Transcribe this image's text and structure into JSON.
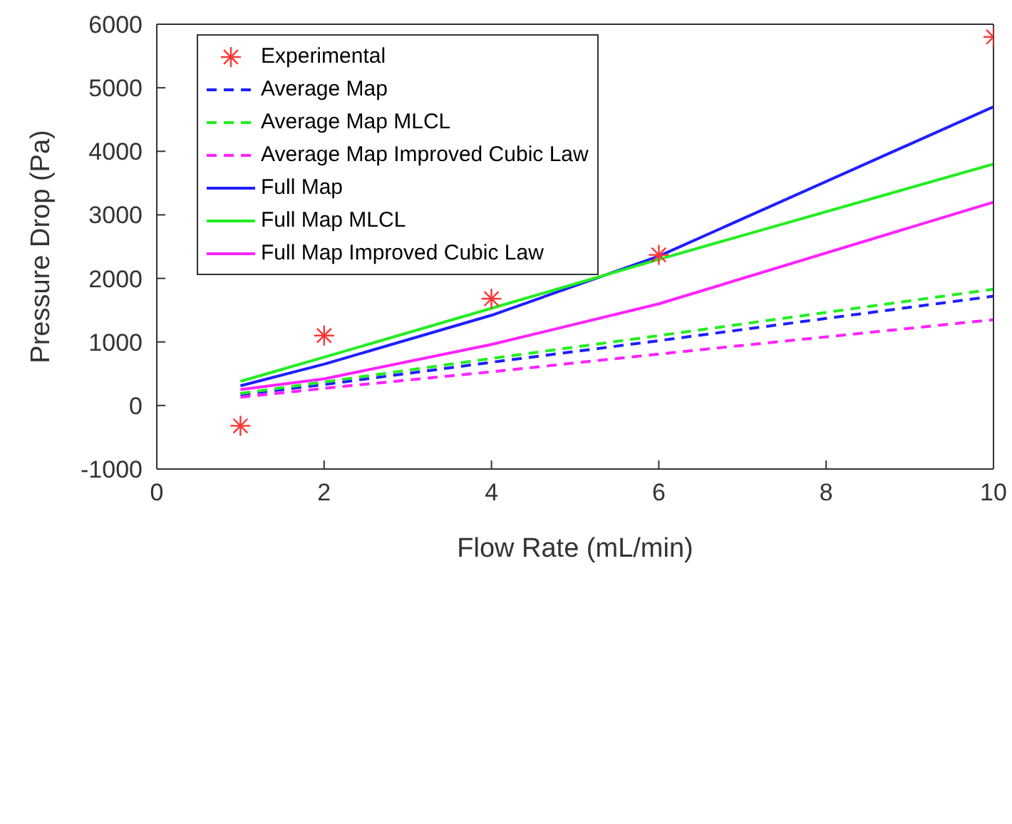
{
  "chart_data": {
    "type": "line",
    "xlabel": "Flow Rate (mL/min)",
    "ylabel": "Pressure Drop (Pa)",
    "x": [
      1,
      2,
      4,
      6,
      10
    ],
    "xlim": [
      0,
      10
    ],
    "xticks": [
      0,
      2,
      4,
      6,
      8,
      10
    ],
    "ylim": [
      -1000,
      6000
    ],
    "yticks": [
      -1000,
      0,
      1000,
      2000,
      3000,
      4000,
      5000,
      6000
    ],
    "grid": false,
    "legend": "top left",
    "series": [
      {
        "name": "Experimental",
        "type": "scatter",
        "marker": "cross",
        "color": "#ff3333",
        "values": [
          -320,
          1100,
          1680,
          2370,
          5800
        ]
      },
      {
        "name": "Average Map",
        "line_style": "dashed",
        "marker": "none",
        "color": "#1f1fff",
        "values": [
          170,
          330,
          680,
          1020,
          1720
        ]
      },
      {
        "name": "Average Map MLCL",
        "line_style": "dashed",
        "marker": "none",
        "color": "#22ee22",
        "values": [
          190,
          370,
          740,
          1100,
          1830
        ]
      },
      {
        "name": "Average Map Improved Cubic Law",
        "line_style": "dashed",
        "marker": "none",
        "color": "#ff22ff",
        "values": [
          130,
          270,
          530,
          810,
          1350
        ]
      },
      {
        "name": "Full Map",
        "line_style": "solid",
        "marker": "none",
        "color": "#1f1fff",
        "values": [
          310,
          650,
          1420,
          2350,
          4700
        ]
      },
      {
        "name": "Full Map MLCL",
        "line_style": "solid",
        "marker": "none",
        "color": "#22ee22",
        "values": [
          380,
          760,
          1530,
          2300,
          3800
        ]
      },
      {
        "name": "Full Map Improved Cubic Law",
        "line_style": "solid",
        "marker": "none",
        "color": "#ff22ff",
        "values": [
          250,
          420,
          960,
          1600,
          3200
        ]
      }
    ]
  }
}
